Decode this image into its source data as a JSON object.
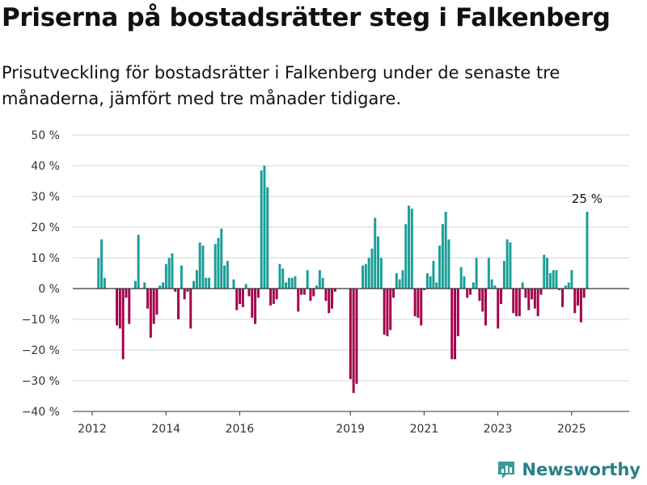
{
  "title": "Priserna på bostadsrätter steg i Falkenberg",
  "subtitle": "Prisutveckling för bostadsrätter i Falkenberg under de senaste tre månaderna, jämfört med tre månader tidigare.",
  "brand": "Newsworthy",
  "colors": {
    "positive": "#1a9e97",
    "negative": "#a3004b",
    "grid": "#d6d6d6",
    "zero_line": "#333333",
    "brand": "#2a7f87"
  },
  "chart_data": {
    "type": "bar",
    "ylim": [
      -40,
      50
    ],
    "yticks": [
      -40,
      -30,
      -20,
      -10,
      0,
      10,
      20,
      30,
      40,
      50
    ],
    "ytick_labels": [
      "−40 %",
      "−30 %",
      "−20 %",
      "−10 %",
      "0 %",
      "10 %",
      "20 %",
      "30 %",
      "40 %",
      "50 %"
    ],
    "xticks": [
      {
        "label": "2012",
        "x": 2012.0
      },
      {
        "label": "2014",
        "x": 2014.0
      },
      {
        "label": "2016",
        "x": 2016.0
      },
      {
        "label": "2019",
        "x": 2019.0
      },
      {
        "label": "2021",
        "x": 2021.0
      },
      {
        "label": "2023",
        "x": 2023.0
      },
      {
        "label": "2025",
        "x": 2025.0
      }
    ],
    "x_start": 2012.17,
    "step_months": 1,
    "values": [
      10,
      16,
      3.5,
      0,
      0,
      0,
      -12,
      -13,
      -23,
      -3,
      -11.5,
      0,
      2.5,
      17.5,
      0,
      2,
      -6.5,
      -16,
      -11.5,
      -8.5,
      1,
      2,
      8,
      10,
      11.5,
      -1,
      -10,
      7.5,
      -3.5,
      -1,
      -13,
      2.5,
      6,
      15,
      14,
      3.5,
      3.5,
      0,
      14.5,
      16.5,
      19.5,
      7.5,
      9,
      0,
      3,
      -7,
      -5,
      -6,
      1.5,
      -2.5,
      -9.5,
      -11.5,
      -3,
      38.5,
      40,
      33,
      -5.5,
      -5,
      -3.5,
      8,
      6.5,
      2,
      3.5,
      3.5,
      4,
      -7.5,
      -2,
      -2,
      6,
      -4,
      -2.5,
      1,
      6,
      3.5,
      -4,
      -8,
      -6.5,
      -1,
      0,
      0,
      0,
      0,
      -29.5,
      -34,
      -31,
      0,
      7.5,
      8,
      10,
      13,
      23,
      17,
      10,
      -15,
      -15.5,
      -13.5,
      -3,
      5,
      3,
      6,
      21,
      27,
      26,
      -9,
      -9.5,
      -12,
      -0.5,
      5,
      4,
      9,
      2,
      14,
      21,
      25,
      16,
      -23,
      -23,
      -15.5,
      7,
      4,
      -3,
      -2,
      2,
      10,
      -4,
      -7.5,
      -12,
      10,
      3,
      1,
      -13,
      -5,
      9,
      16,
      15,
      -8,
      -9,
      -9,
      2,
      -3,
      -7,
      -3.5,
      -6.5,
      -9,
      -2,
      11,
      10,
      5,
      6,
      6,
      -0.5,
      -6,
      1,
      2,
      6,
      -8,
      -5.5,
      -11,
      -3,
      25
    ],
    "annotations": [
      {
        "text": "25 %",
        "index": 159
      }
    ]
  }
}
